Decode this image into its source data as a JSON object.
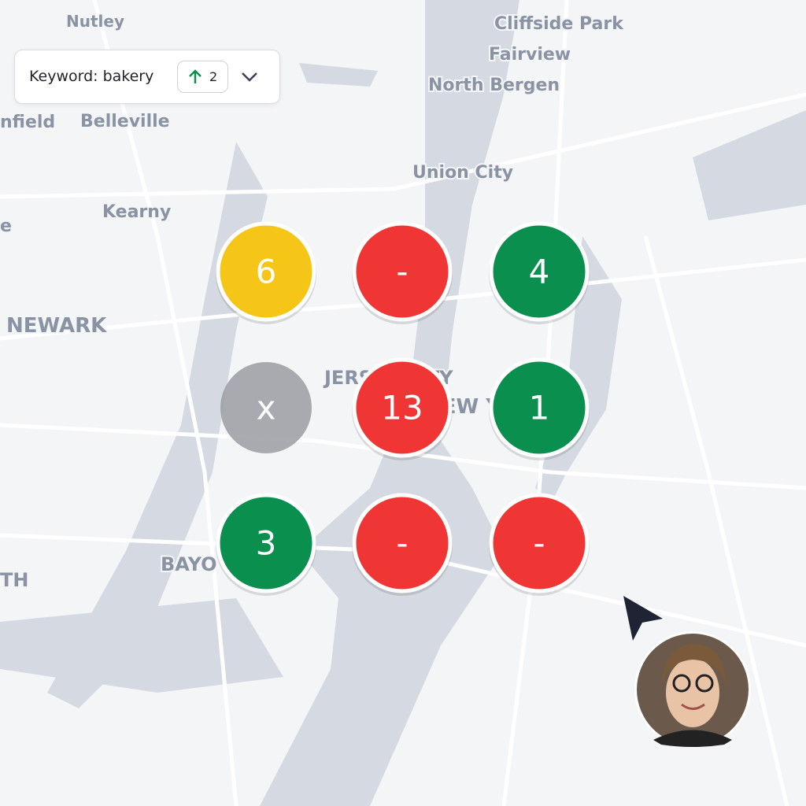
{
  "keyword": {
    "label": "Keyword: bakery",
    "change": "2"
  },
  "map_labels": [
    "Nutley",
    "Cliffside Park",
    "Fairview",
    "North Bergen",
    "nfield",
    "Belleville",
    "Union City",
    "Kearny",
    "e",
    "NEWARK",
    "JERSEY CITY",
    "NEW YORK",
    "BAYO",
    "TH"
  ],
  "markers": [
    {
      "label": "6",
      "color": "#f5c518"
    },
    {
      "label": "-",
      "color": "#f03535"
    },
    {
      "label": "4",
      "color": "#0a8f4e"
    },
    {
      "label": "x",
      "color": "#9a9ca3"
    },
    {
      "label": "13",
      "color": "#f03535"
    },
    {
      "label": "1",
      "color": "#0a8f4e"
    },
    {
      "label": "3",
      "color": "#0a8f4e"
    },
    {
      "label": "-",
      "color": "#f03535"
    },
    {
      "label": "-",
      "color": "#f03535"
    }
  ]
}
